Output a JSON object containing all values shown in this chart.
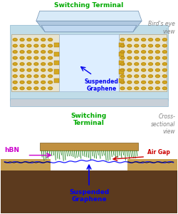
{
  "bg_color": "#ffffff",
  "top_panel": {
    "label": "Bird's eye\nview",
    "switching_terminal_label": "Switching Terminal",
    "suspended_graphene_label": "Suspended\nGraphene",
    "platform_color": "#c0dce8",
    "base_color": "#c8d0d8",
    "graphene_bg_color": "#ddeeff",
    "gold_dot_color": "#d4a820",
    "gold_outline_color": "#a07010",
    "pad_color": "#e8e4d0",
    "pad_edge_color": "#b0a080"
  },
  "bottom_panel": {
    "label": "Cross-\nsectional\nview",
    "switching_terminal_label": "Switching\nTerminal",
    "hbn_label": "hBN",
    "air_gap_label": "Air Gap",
    "suspended_graphene_label": "Suspended\nGraphene",
    "substrate_color": "#5c3a1e",
    "oxide_color": "#c8a050",
    "dielectric_color": "#808080",
    "terminal_top_color": "#c09040",
    "hbn_color": "#2a8a2a",
    "graphene_color": "#1a1aff"
  },
  "label_color_green": "#00aa00",
  "label_color_blue": "#0000ee",
  "label_color_red": "#cc0000",
  "label_color_magenta": "#cc00cc",
  "label_color_gray": "#808080"
}
